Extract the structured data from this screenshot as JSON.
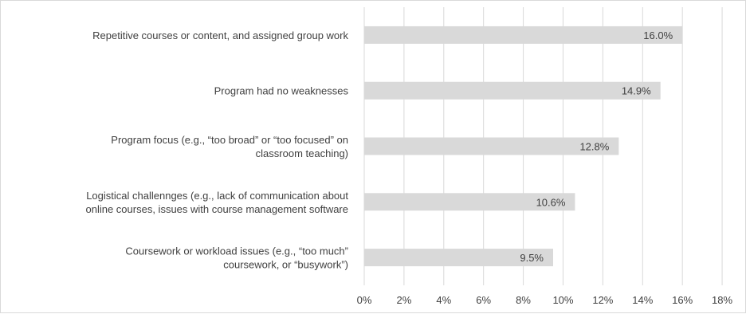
{
  "chart_data": {
    "type": "bar",
    "orientation": "horizontal",
    "categories": [
      "Repetitive courses or content, and assigned group work",
      "Program had no weaknesses",
      "Program focus (e.g., “too broad” or “too focused” on classroom teaching)",
      "Logistical challennges (e.g., lack of communication about online courses, issues with course management software",
      "Coursework or workload issues (e.g., “too much” coursework, or “busywork”)"
    ],
    "category_lines": [
      [
        "Repetitive courses or content, and assigned group work"
      ],
      [
        "Program had no weaknesses"
      ],
      [
        "Program focus (e.g., “too broad” or “too focused” on",
        "classroom teaching)"
      ],
      [
        "Logistical challennges (e.g., lack of communication about",
        "online courses, issues with course management software"
      ],
      [
        "Coursework or workload issues (e.g., “too much”",
        "coursework, or “busywork”)"
      ]
    ],
    "values": [
      16.0,
      14.9,
      12.8,
      10.6,
      9.5
    ],
    "data_labels": [
      "16.0%",
      "14.9%",
      "12.8%",
      "10.6%",
      "9.5%"
    ],
    "x_ticks": [
      "0%",
      "2%",
      "4%",
      "6%",
      "8%",
      "10%",
      "12%",
      "14%",
      "16%",
      "18%"
    ],
    "xlim": [
      0,
      19
    ],
    "grid": "vertical",
    "legend": "none",
    "bar_color": "#d9d9d9",
    "grid_color": "#d9d9d9",
    "title": "",
    "xlabel": "",
    "ylabel": ""
  }
}
